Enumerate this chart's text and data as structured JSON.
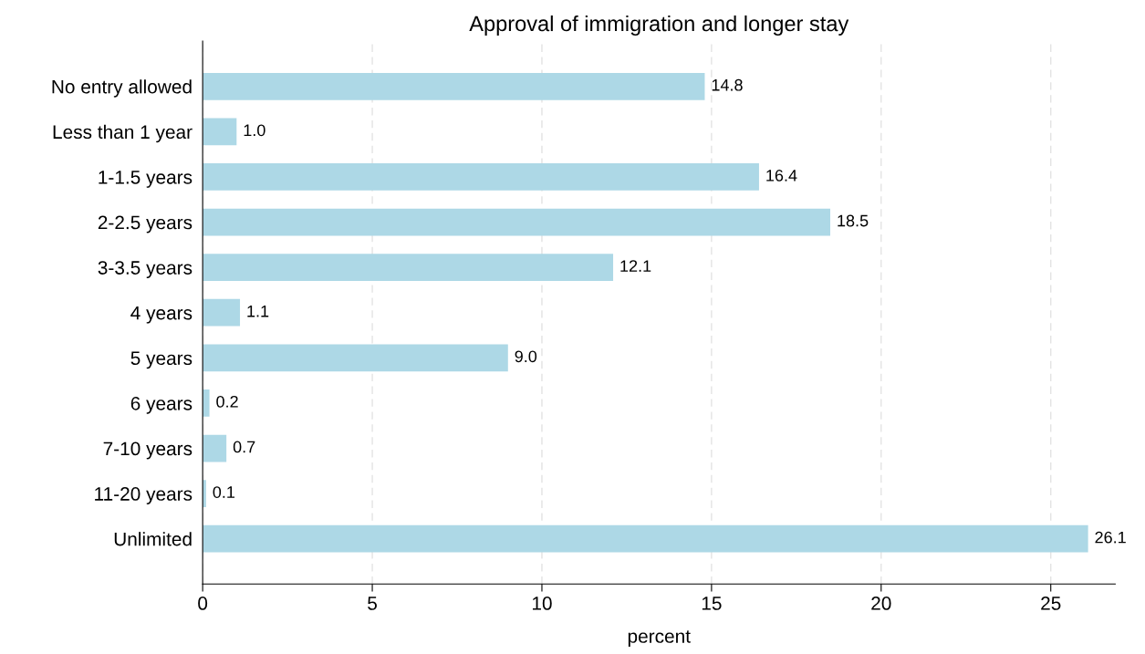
{
  "chart_data": {
    "type": "bar",
    "orientation": "horizontal",
    "title": "Approval of immigration and longer stay",
    "xlabel": "percent",
    "categories": [
      "No entry allowed",
      "Less than 1 year",
      "1-1.5 years",
      "2-2.5 years",
      "3-3.5 years",
      "4 years",
      "5 years",
      "6 years",
      "7-10 years",
      "11-20 years",
      "Unlimited"
    ],
    "values": [
      14.8,
      1.0,
      16.4,
      18.5,
      12.1,
      1.1,
      9.0,
      0.2,
      0.7,
      0.1,
      26.1
    ],
    "value_labels": [
      "14.8",
      "1.0",
      "16.4",
      "18.5",
      "12.1",
      "1.1",
      "9.0",
      "0.2",
      "0.7",
      "0.1",
      "26.1"
    ],
    "color": "#add8e6",
    "xlim": [
      0,
      26.9
    ],
    "xticks": [
      0,
      5,
      10,
      15,
      20,
      25
    ],
    "grid": "x",
    "legend": false
  }
}
